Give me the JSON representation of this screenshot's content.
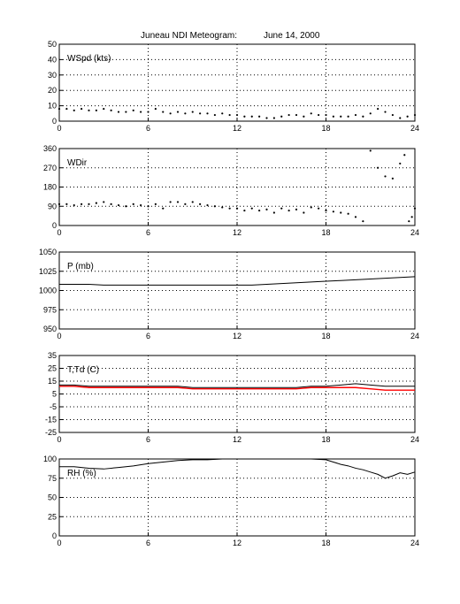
{
  "title": "Juneau NDI Meteogram:",
  "date": "June 14, 2000",
  "colors": {
    "axis": "#000000",
    "grid": "#000000",
    "series": "#000000",
    "dewpoint": "#ff0000"
  },
  "chart_data": [
    {
      "type": "scatter",
      "label": "WSpd (kts)",
      "xlim": [
        0,
        24
      ],
      "ylim": [
        0,
        50
      ],
      "xticks": [
        0,
        6,
        12,
        18,
        24
      ],
      "yticks": [
        0,
        10,
        20,
        30,
        40,
        50
      ],
      "grid": true,
      "series": [
        {
          "x": [
            0,
            0.5,
            1,
            1.5,
            2,
            2.5,
            3,
            3.5,
            4,
            4.5,
            5,
            5.5,
            6,
            6.5,
            7,
            7.5,
            8,
            8.5,
            9,
            9.5,
            10,
            10.5,
            11,
            11.5,
            12,
            12.5,
            13,
            13.5,
            14,
            14.5,
            15,
            15.5,
            16,
            16.5,
            17,
            17.5,
            18,
            18.5,
            19,
            19.5,
            20,
            20.5,
            21,
            21.5,
            22,
            22.5,
            23,
            23.5,
            24
          ],
          "y": [
            8,
            8,
            7,
            8,
            7,
            7,
            8,
            7,
            6,
            6,
            7,
            6,
            6,
            8,
            6,
            5,
            6,
            5,
            6,
            5,
            5,
            4,
            5,
            4,
            4,
            3,
            3,
            3,
            2,
            2,
            3,
            4,
            4,
            3,
            5,
            4,
            4,
            3,
            3,
            3,
            4,
            3,
            5,
            8,
            6,
            4,
            2,
            3,
            4
          ]
        }
      ]
    },
    {
      "type": "scatter",
      "label": "WDir",
      "xlim": [
        0,
        24
      ],
      "ylim": [
        0,
        360
      ],
      "xticks": [
        0,
        6,
        12,
        18,
        24
      ],
      "yticks": [
        0,
        90,
        180,
        270,
        360
      ],
      "grid": true,
      "series": [
        {
          "x": [
            0,
            0.5,
            1,
            1.5,
            2,
            2.5,
            3,
            3.5,
            4,
            4.5,
            5,
            5.5,
            6,
            6.5,
            7,
            7.5,
            8,
            8.5,
            9,
            9.5,
            10,
            10.5,
            11,
            11.5,
            12,
            12.5,
            13,
            13.5,
            14,
            14.5,
            15,
            15.5,
            16,
            16.5,
            17,
            17.5,
            18,
            18.5,
            19,
            19.5,
            20,
            20.5,
            21,
            21.5,
            22,
            22.5,
            23,
            23.3,
            23.6,
            23.8,
            24
          ],
          "y": [
            100,
            100,
            95,
            100,
            100,
            105,
            110,
            100,
            95,
            90,
            100,
            95,
            90,
            100,
            80,
            110,
            110,
            100,
            110,
            100,
            95,
            90,
            85,
            80,
            80,
            70,
            80,
            70,
            75,
            60,
            80,
            70,
            75,
            60,
            85,
            80,
            70,
            65,
            60,
            55,
            40,
            20,
            350,
            270,
            230,
            220,
            290,
            330,
            20,
            40,
            80
          ]
        }
      ]
    },
    {
      "type": "line",
      "label": "P (mb)",
      "xlim": [
        0,
        24
      ],
      "ylim": [
        950,
        1050
      ],
      "xticks": [
        0,
        6,
        12,
        18,
        24
      ],
      "yticks": [
        950,
        975,
        1000,
        1025,
        1050
      ],
      "grid": true,
      "series": [
        {
          "x": [
            0,
            1,
            2,
            3,
            4,
            5,
            6,
            7,
            8,
            9,
            10,
            11,
            12,
            13,
            14,
            15,
            16,
            17,
            18,
            19,
            20,
            21,
            22,
            23,
            24
          ],
          "y": [
            1008,
            1008,
            1008,
            1007,
            1007,
            1007,
            1007,
            1007,
            1007,
            1007,
            1007,
            1007,
            1007,
            1007,
            1008,
            1009,
            1010,
            1011,
            1012,
            1013,
            1014,
            1015,
            1016,
            1017,
            1018
          ]
        }
      ]
    },
    {
      "type": "line",
      "label": "T,Td (C)",
      "xlim": [
        0,
        24
      ],
      "ylim": [
        -25,
        35
      ],
      "xticks": [
        0,
        6,
        12,
        18,
        24
      ],
      "yticks": [
        -25,
        -15,
        -5,
        5,
        15,
        25,
        35
      ],
      "grid": true,
      "series": [
        {
          "x": [
            0,
            1,
            2,
            3,
            4,
            5,
            6,
            7,
            8,
            9,
            10,
            11,
            12,
            13,
            14,
            15,
            16,
            17,
            18,
            19,
            20,
            21,
            22,
            23,
            24
          ],
          "y": [
            12,
            12,
            11,
            11,
            11,
            11,
            11,
            11,
            11,
            10,
            10,
            10,
            10,
            10,
            10,
            10,
            10,
            11,
            11,
            12,
            13,
            12,
            11,
            11,
            11
          ]
        },
        {
          "x": [
            0,
            1,
            2,
            3,
            4,
            5,
            6,
            7,
            8,
            9,
            10,
            11,
            12,
            13,
            14,
            15,
            16,
            17,
            18,
            19,
            20,
            21,
            22,
            23,
            24
          ],
          "y": [
            11,
            11,
            10,
            10,
            10,
            10,
            10,
            10,
            10,
            9,
            9,
            9,
            9,
            9,
            9,
            9,
            9,
            10,
            10,
            10,
            10,
            9,
            8,
            8,
            8
          ]
        }
      ]
    },
    {
      "type": "line",
      "label": "RH (%)",
      "xlim": [
        0,
        24
      ],
      "ylim": [
        0,
        100
      ],
      "xticks": [
        0,
        6,
        12,
        18,
        24
      ],
      "yticks": [
        0,
        25,
        50,
        75,
        100
      ],
      "grid": true,
      "series": [
        {
          "x": [
            0,
            1,
            2,
            3,
            4,
            5,
            6,
            7,
            8,
            9,
            10,
            11,
            12,
            13,
            14,
            15,
            16,
            17,
            18,
            18.5,
            19,
            19.5,
            20,
            20.5,
            21,
            21.5,
            22,
            22.5,
            23,
            23.5,
            24
          ],
          "y": [
            90,
            90,
            88,
            87,
            89,
            91,
            94,
            96,
            98,
            99,
            99,
            100,
            100,
            100,
            100,
            100,
            100,
            100,
            99,
            96,
            93,
            91,
            88,
            86,
            83,
            80,
            75,
            78,
            82,
            80,
            83
          ]
        }
      ]
    }
  ]
}
